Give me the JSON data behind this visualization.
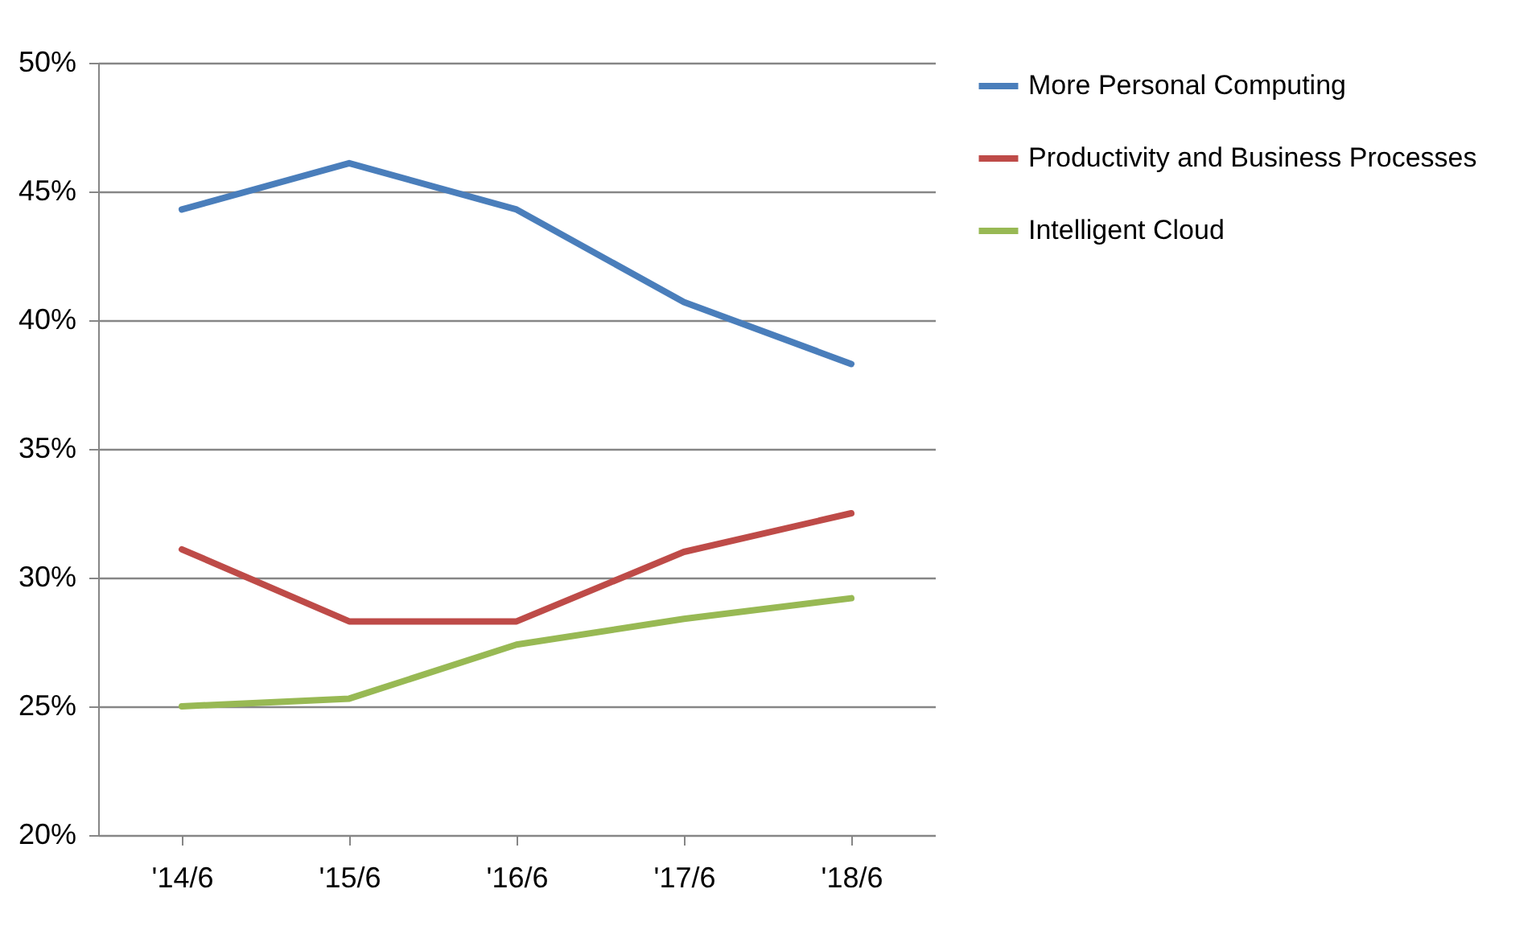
{
  "chart_data": {
    "type": "line",
    "categories": [
      "'14/6",
      "'15/6",
      "'16/6",
      "'17/6",
      "'18/6"
    ],
    "series": [
      {
        "name": "More Personal Computing",
        "color": "#4a7ebb",
        "values": [
          44.3,
          46.1,
          44.3,
          40.7,
          38.3
        ]
      },
      {
        "name": "Productivity and Business Processes",
        "color": "#be4b48",
        "values": [
          31.1,
          28.3,
          28.3,
          31.0,
          32.5
        ]
      },
      {
        "name": "Intelligent Cloud",
        "color": "#98b954",
        "values": [
          25.0,
          25.3,
          27.4,
          28.4,
          29.2
        ]
      }
    ],
    "ylim": [
      20,
      50
    ],
    "yticks": [
      {
        "value": 20,
        "label": "20%"
      },
      {
        "value": 25,
        "label": "25%"
      },
      {
        "value": 30,
        "label": "30%"
      },
      {
        "value": 35,
        "label": "35%"
      },
      {
        "value": 40,
        "label": "40%"
      },
      {
        "value": 45,
        "label": "45%"
      },
      {
        "value": 50,
        "label": "50%"
      }
    ],
    "grid": "y",
    "legend": "right",
    "marker": "none",
    "line_style": "solid"
  }
}
